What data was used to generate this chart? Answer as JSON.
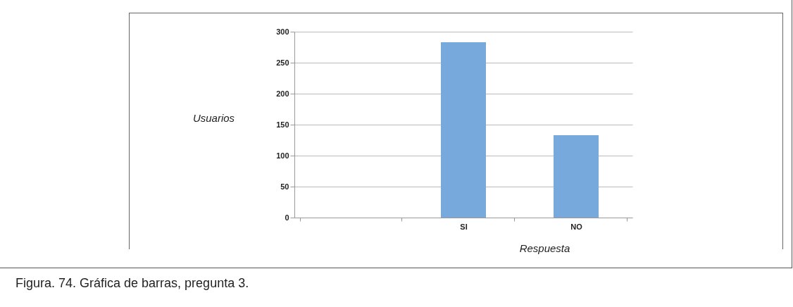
{
  "chart_data": {
    "type": "bar",
    "categories": [
      null,
      "SI",
      "NO"
    ],
    "values": [
      null,
      283,
      133
    ],
    "color": "#78a9dd",
    "xlabel": "Respuesta",
    "ylabel": "Usuarios",
    "ylim": [
      0,
      300
    ],
    "yticks": [
      0,
      50,
      100,
      150,
      200,
      250,
      300
    ],
    "grid": "y",
    "annotations": [
      "Figura. 74. Gráfica de barras, pregunta 3."
    ]
  }
}
